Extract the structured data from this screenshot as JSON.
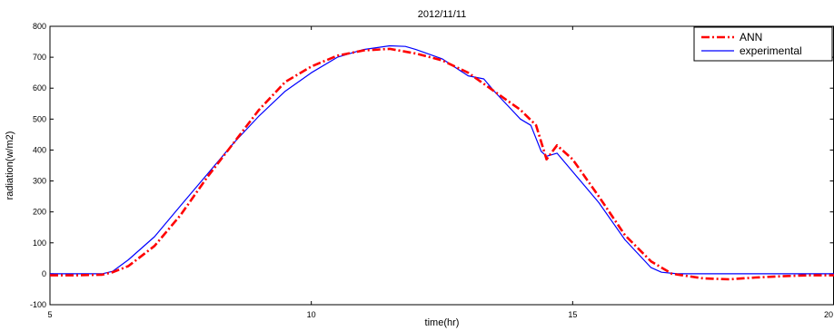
{
  "chart_data": {
    "type": "line",
    "title": "2012/11/11",
    "xlabel": "time(hr)",
    "ylabel": "radiation(w/m2)",
    "xlim": [
      5,
      20
    ],
    "ylim": [
      -100,
      800
    ],
    "xticks": [
      "5",
      "10",
      "15",
      "20"
    ],
    "yticks": [
      "-100",
      "0",
      "100",
      "200",
      "300",
      "400",
      "500",
      "600",
      "700",
      "800"
    ],
    "legend_position": "top-right",
    "series": [
      {
        "name": "ANN",
        "color": "#ff0000",
        "style": "dash-dot",
        "x": [
          5,
          5.5,
          6,
          6.2,
          6.5,
          7,
          7.5,
          8,
          8.5,
          9,
          9.5,
          10,
          10.5,
          11,
          11.5,
          12,
          12.5,
          13,
          13.5,
          14,
          14.3,
          14.5,
          14.7,
          15,
          15.5,
          16,
          16.5,
          16.9,
          17.5,
          18,
          18.5,
          19,
          19.5,
          20
        ],
        "y": [
          -5,
          -5,
          -3,
          5,
          25,
          90,
          190,
          310,
          420,
          530,
          620,
          670,
          705,
          722,
          727,
          712,
          690,
          650,
          590,
          530,
          480,
          370,
          415,
          370,
          250,
          125,
          40,
          0,
          -15,
          -18,
          -12,
          -8,
          -5,
          -5
        ]
      },
      {
        "name": "experimental",
        "color": "#0000ff",
        "style": "solid",
        "x": [
          5,
          5.5,
          6,
          6.2,
          6.5,
          7,
          7.5,
          8,
          8.5,
          9,
          9.5,
          10,
          10.5,
          11,
          11.5,
          11.8,
          12,
          12.5,
          13,
          13.3,
          13.5,
          14,
          14.2,
          14.4,
          14.5,
          14.7,
          15,
          15.5,
          16,
          16.5,
          16.7,
          17,
          18,
          19,
          20
        ],
        "y": [
          0,
          0,
          0,
          8,
          45,
          120,
          220,
          320,
          420,
          510,
          590,
          650,
          700,
          725,
          737,
          735,
          725,
          695,
          640,
          630,
          590,
          500,
          480,
          395,
          380,
          390,
          330,
          230,
          110,
          20,
          5,
          0,
          0,
          0,
          0
        ]
      }
    ]
  }
}
